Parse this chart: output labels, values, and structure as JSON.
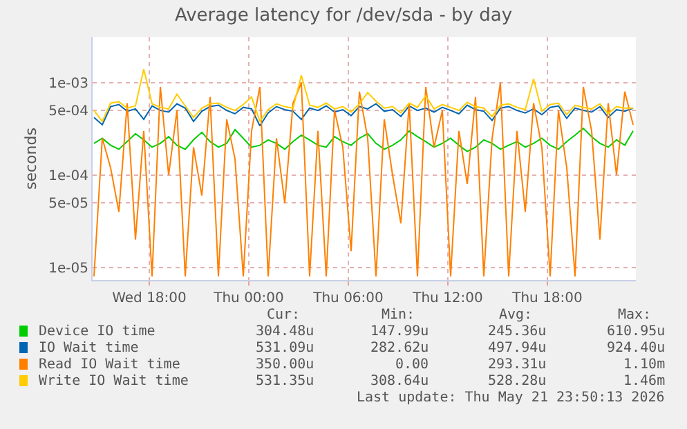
{
  "chart_data": {
    "type": "line",
    "title": "Average latency for /dev/sda - by day",
    "ylabel": "seconds",
    "log": true,
    "grid": true,
    "legend": "bottom",
    "xlim": [
      "2026-05-20T14:35",
      "2026-05-21T23:20"
    ],
    "xticks": [
      {
        "value": "2026-05-20T18:00",
        "label": "Wed 18:00"
      },
      {
        "value": "2026-05-21T00:00",
        "label": "Thu 00:00"
      },
      {
        "value": "2026-05-21T06:00",
        "label": "Thu 06:00"
      },
      {
        "value": "2026-05-21T12:00",
        "label": "Thu 12:00"
      },
      {
        "value": "2026-05-21T18:00",
        "label": "Thu 18:00"
      }
    ],
    "ylim": [
      7.3e-06,
      0.0031
    ],
    "yticks": [
      {
        "value": 1e-05,
        "label": "1e-05"
      },
      {
        "value": 5e-05,
        "label": "5e-05"
      },
      {
        "value": 0.0001,
        "label": "1e-04"
      },
      {
        "value": 0.0005,
        "label": "5e-04"
      },
      {
        "value": 0.001,
        "label": "1e-03"
      }
    ],
    "x": [
      "2026-05-20T14:40",
      "2026-05-20T15:10",
      "2026-05-20T15:40",
      "2026-05-20T16:10",
      "2026-05-20T16:40",
      "2026-05-20T17:10",
      "2026-05-20T17:40",
      "2026-05-20T18:10",
      "2026-05-20T18:40",
      "2026-05-20T19:10",
      "2026-05-20T19:40",
      "2026-05-20T20:10",
      "2026-05-20T20:40",
      "2026-05-20T21:10",
      "2026-05-20T21:40",
      "2026-05-20T22:10",
      "2026-05-20T22:40",
      "2026-05-20T23:10",
      "2026-05-20T23:40",
      "2026-05-21T00:10",
      "2026-05-21T00:40",
      "2026-05-21T01:10",
      "2026-05-21T01:40",
      "2026-05-21T02:10",
      "2026-05-21T02:40",
      "2026-05-21T03:10",
      "2026-05-21T03:40",
      "2026-05-21T04:10",
      "2026-05-21T04:40",
      "2026-05-21T05:10",
      "2026-05-21T05:40",
      "2026-05-21T06:10",
      "2026-05-21T06:40",
      "2026-05-21T07:10",
      "2026-05-21T07:40",
      "2026-05-21T08:10",
      "2026-05-21T08:40",
      "2026-05-21T09:10",
      "2026-05-21T09:40",
      "2026-05-21T10:10",
      "2026-05-21T10:40",
      "2026-05-21T11:10",
      "2026-05-21T11:40",
      "2026-05-21T12:10",
      "2026-05-21T12:40",
      "2026-05-21T13:10",
      "2026-05-21T13:40",
      "2026-05-21T14:10",
      "2026-05-21T14:40",
      "2026-05-21T15:10",
      "2026-05-21T15:40",
      "2026-05-21T16:10",
      "2026-05-21T16:40",
      "2026-05-21T17:10",
      "2026-05-21T17:40",
      "2026-05-21T18:10",
      "2026-05-21T18:40",
      "2026-05-21T19:10",
      "2026-05-21T19:40",
      "2026-05-21T20:10",
      "2026-05-21T20:40",
      "2026-05-21T21:10",
      "2026-05-21T21:40",
      "2026-05-21T22:10",
      "2026-05-21T22:40",
      "2026-05-21T23:10"
    ],
    "series": [
      {
        "name": "Device IO time",
        "color": "#00cc00",
        "values": [
          0.00022,
          0.00025,
          0.00021,
          0.00019,
          0.00023,
          0.00028,
          0.00024,
          0.0002,
          0.00022,
          0.00026,
          0.00021,
          0.00019,
          0.00024,
          0.00029,
          0.00023,
          0.0002,
          0.00022,
          0.00031,
          0.00025,
          0.0002,
          0.00021,
          0.00024,
          0.00022,
          0.00019,
          0.00023,
          0.00027,
          0.00024,
          0.00021,
          0.0002,
          0.00026,
          0.00023,
          0.00021,
          0.00025,
          0.00028,
          0.00022,
          0.00019,
          0.00021,
          0.00024,
          0.0003,
          0.00026,
          0.00023,
          0.0002,
          0.00022,
          0.00025,
          0.00021,
          0.00018,
          0.0002,
          0.00024,
          0.00022,
          0.00019,
          0.00021,
          0.00023,
          0.0002,
          0.00022,
          0.00025,
          0.00021,
          0.00019,
          0.00023,
          0.00027,
          0.00032,
          0.00026,
          0.00022,
          0.0002,
          0.00024,
          0.00021,
          0.0003
        ]
      },
      {
        "name": "IO Wait time",
        "color": "#0066b3",
        "values": [
          0.00042,
          0.00035,
          0.00055,
          0.00058,
          0.00049,
          0.00052,
          0.0004,
          0.00056,
          0.0005,
          0.00048,
          0.00059,
          0.00053,
          0.00038,
          0.00049,
          0.00055,
          0.00057,
          0.0005,
          0.00046,
          0.00054,
          0.00052,
          0.00034,
          0.00047,
          0.00055,
          0.00051,
          0.00049,
          0.0004,
          0.00053,
          0.0005,
          0.00056,
          0.00048,
          0.00051,
          0.00044,
          0.00055,
          0.00052,
          0.00059,
          0.00049,
          0.00051,
          0.00043,
          0.00056,
          0.0005,
          0.00053,
          0.00048,
          0.00054,
          0.0005,
          0.00046,
          0.00057,
          0.00051,
          0.00049,
          0.00039,
          0.00053,
          0.00055,
          0.0005,
          0.00047,
          0.00052,
          0.00045,
          0.00054,
          0.00056,
          0.00041,
          0.00053,
          0.0005,
          0.00048,
          0.00055,
          0.00042,
          0.00051,
          0.00049,
          0.00053
        ]
      },
      {
        "name": "Read IO Wait time",
        "color": "#ff8000",
        "values": [
          8e-06,
          0.00025,
          0.00012,
          4e-05,
          0.0006,
          2e-05,
          0.0003,
          8e-06,
          0.0009,
          0.0001,
          0.0005,
          8e-06,
          0.0002,
          6e-05,
          0.0007,
          8e-06,
          0.0004,
          0.00015,
          8e-06,
          0.0003,
          0.0009,
          8e-06,
          0.00025,
          5e-05,
          0.0006,
          0.001,
          8e-06,
          0.0003,
          8e-06,
          0.0005,
          0.0002,
          1.5e-05,
          0.0008,
          0.00025,
          8e-06,
          0.0004,
          0.0001,
          3e-05,
          0.0006,
          8e-06,
          0.0009,
          0.0002,
          0.0005,
          8e-06,
          0.0003,
          8e-05,
          0.0007,
          8e-06,
          0.00025,
          0.001,
          8e-06,
          0.0003,
          4e-05,
          0.0006,
          0.0002,
          8e-06,
          0.0005,
          0.00012,
          8e-06,
          0.0009,
          0.0003,
          2e-05,
          0.0006,
          0.0001,
          0.0008,
          0.00035
        ]
      },
      {
        "name": "Write IO Wait time",
        "color": "#ffcc00",
        "values": [
          0.0005,
          0.00038,
          0.0006,
          0.00062,
          0.00053,
          0.00056,
          0.0014,
          0.00059,
          0.00054,
          0.00052,
          0.00075,
          0.00056,
          0.00042,
          0.00053,
          0.00059,
          0.0006,
          0.00054,
          0.0005,
          0.00058,
          0.0007,
          0.00038,
          0.00051,
          0.00059,
          0.00055,
          0.00053,
          0.0012,
          0.00057,
          0.00054,
          0.0006,
          0.00052,
          0.00055,
          0.00048,
          0.00059,
          0.00078,
          0.00063,
          0.00053,
          0.00055,
          0.00047,
          0.0006,
          0.00054,
          0.00072,
          0.00052,
          0.00058,
          0.00054,
          0.0005,
          0.00061,
          0.00055,
          0.00053,
          0.00043,
          0.00057,
          0.00059,
          0.00054,
          0.00051,
          0.0011,
          0.00049,
          0.00058,
          0.0006,
          0.00045,
          0.00057,
          0.00054,
          0.00052,
          0.00059,
          0.00046,
          0.00055,
          0.00053,
          0.00053
        ]
      }
    ],
    "annotations": [
      "Cur:",
      "Min:",
      "Avg:",
      "Max:",
      "304.48u",
      "147.99u",
      "245.36u",
      "610.95u",
      "531.09u",
      "282.62u",
      "497.94u",
      "924.40u",
      "350.00u",
      "0.00",
      "293.31u",
      "1.10m",
      "531.35u",
      "308.64u",
      "528.28u",
      "1.46m",
      "Last update: Thu May 21 23:50:13 2026"
    ]
  }
}
